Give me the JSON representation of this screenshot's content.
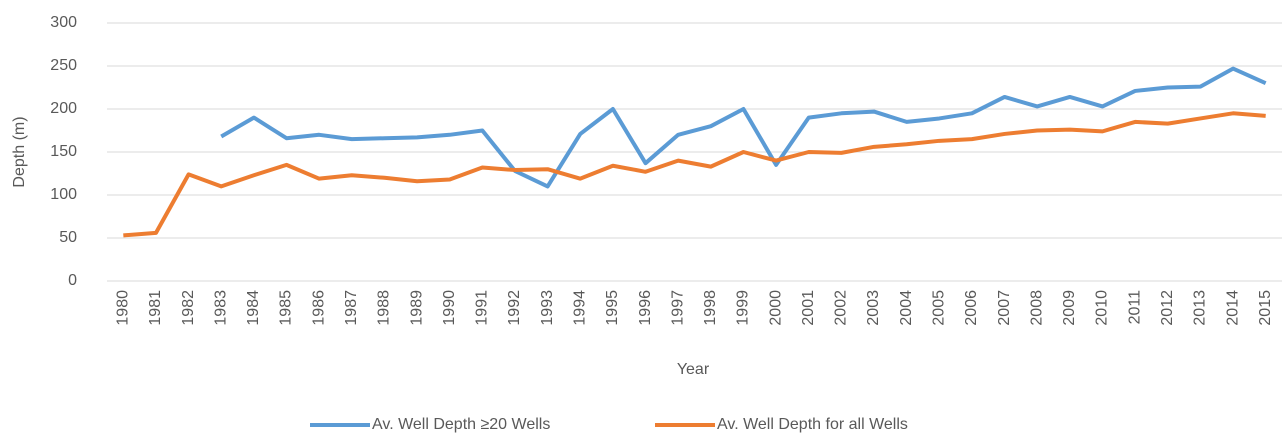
{
  "chart_data": {
    "type": "line",
    "categories": [
      "1980",
      "1981",
      "1982",
      "1983",
      "1984",
      "1985",
      "1986",
      "1987",
      "1988",
      "1989",
      "1990",
      "1991",
      "1992",
      "1993",
      "1994",
      "1995",
      "1996",
      "1997",
      "1998",
      "1999",
      "2000",
      "2001",
      "2002",
      "2003",
      "2004",
      "2005",
      "2006",
      "2007",
      "2008",
      "2009",
      "2010",
      "2011",
      "2012",
      "2013",
      "2014",
      "2015"
    ],
    "series": [
      {
        "name": "Av. Well Depth ≥20 Wells",
        "color": "#5b9bd5",
        "values": [
          null,
          null,
          null,
          168,
          190,
          166,
          170,
          165,
          166,
          167,
          170,
          175,
          128,
          110,
          171,
          200,
          137,
          170,
          180,
          200,
          135,
          190,
          195,
          197,
          185,
          189,
          195,
          214,
          203,
          214,
          203,
          221,
          225,
          226,
          247,
          230
        ]
      },
      {
        "name": "Av. Well Depth for all Wells",
        "color": "#ed7d31",
        "values": [
          53,
          56,
          124,
          110,
          123,
          135,
          119,
          123,
          120,
          116,
          118,
          132,
          129,
          130,
          119,
          134,
          127,
          140,
          133,
          150,
          140,
          150,
          149,
          156,
          159,
          163,
          165,
          171,
          175,
          176,
          174,
          185,
          183,
          189,
          195,
          192
        ]
      }
    ],
    "xlabel": "Year",
    "ylabel": "Depth (m)",
    "ylim": [
      0,
      300
    ],
    "yticks": [
      0,
      50,
      100,
      150,
      200,
      250,
      300
    ],
    "grid": true,
    "legend": "bottom"
  }
}
